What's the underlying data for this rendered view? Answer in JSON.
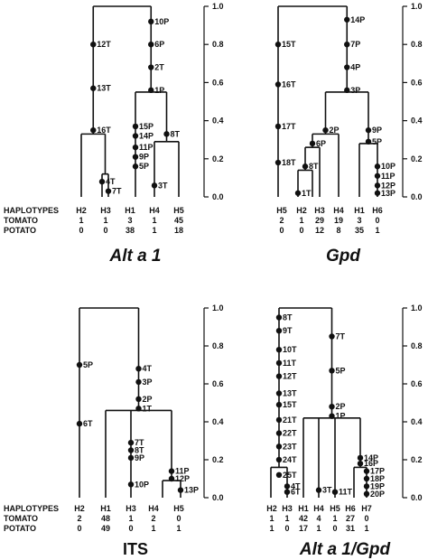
{
  "figure": {
    "panels": [
      {
        "title": "Alt a 1",
        "title_style": "italic",
        "table": {
          "labels": [
            "HAPLOTYPES",
            "TOMATO",
            "POTATO"
          ],
          "columns": [
            {
              "haplotype": "H2",
              "tomato": "1",
              "potato": "0"
            },
            {
              "haplotype": "H3",
              "tomato": "1",
              "potato": "0"
            },
            {
              "haplotype": "H1",
              "tomato": "3",
              "potato": "38"
            },
            {
              "haplotype": "H4",
              "tomato": "1",
              "potato": "1"
            },
            {
              "haplotype": "H5",
              "tomato": "45",
              "potato": "18"
            }
          ]
        },
        "axis_ticks": [
          "1.0",
          "0.8",
          "0.6",
          "0.4",
          "0.2",
          "0.0"
        ],
        "tree": {
          "nodes": [
            {
              "id": "root",
              "height": 1.0
            },
            {
              "id": "T",
              "height": 0.33
            },
            {
              "id": "Tsub",
              "height": 0.12
            },
            {
              "id": "P",
              "height": 0.55
            },
            {
              "id": "Psub",
              "height": 0.29
            }
          ],
          "links": [
            {
              "from": "root",
              "to": "T"
            },
            {
              "from": "root",
              "to": "P"
            },
            {
              "from": "T",
              "to": "H2"
            },
            {
              "from": "T",
              "to": "Tsub"
            },
            {
              "from": "Tsub",
              "to": "H3a"
            },
            {
              "from": "Tsub",
              "to": "H3b"
            },
            {
              "from": "P",
              "to": "H1"
            },
            {
              "from": "P",
              "to": "Psub"
            },
            {
              "from": "Psub",
              "to": "H4"
            },
            {
              "from": "Psub",
              "to": "H5"
            }
          ],
          "mutations": [
            {
              "label": "12T",
              "from": "root",
              "to": "T",
              "height": 0.8
            },
            {
              "label": "13T",
              "from": "root",
              "to": "T",
              "height": 0.57
            },
            {
              "label": "16T",
              "from": "root",
              "to": "T",
              "height": 0.35
            },
            {
              "label": "10P",
              "from": "root",
              "to": "P",
              "height": 0.92
            },
            {
              "label": "6P",
              "from": "root",
              "to": "P",
              "height": 0.8
            },
            {
              "label": "2T",
              "from": "root",
              "to": "P",
              "height": 0.68
            },
            {
              "label": "1P",
              "from": "root",
              "to": "P",
              "height": 0.56
            },
            {
              "label": "4T",
              "from": "Tsub",
              "to": "H3a",
              "height": 0.08
            },
            {
              "label": "7T",
              "from": "Tsub",
              "to": "H3b",
              "height": 0.03
            },
            {
              "label": "15P",
              "from": "P",
              "to": "H1",
              "height": 0.37
            },
            {
              "label": "14P",
              "from": "P",
              "to": "H1",
              "height": 0.32
            },
            {
              "label": "11P",
              "from": "P",
              "to": "H1",
              "height": 0.26
            },
            {
              "label": "9P",
              "from": "P",
              "to": "H1",
              "height": 0.21
            },
            {
              "label": "5P",
              "from": "P",
              "to": "H1",
              "height": 0.16
            },
            {
              "label": "8T",
              "from": "P",
              "to": "Psub",
              "height": 0.33
            },
            {
              "label": "3T",
              "from": "Psub",
              "to": "H4",
              "height": 0.06
            }
          ]
        }
      },
      {
        "title": "Gpd",
        "title_style": "italic",
        "table": {
          "labels": [
            "",
            "",
            ""
          ],
          "columns": [
            {
              "haplotype": "H5",
              "tomato": "2",
              "potato": "0"
            },
            {
              "haplotype": "H2",
              "tomato": "1",
              "potato": "0"
            },
            {
              "haplotype": "H3",
              "tomato": "29",
              "potato": "12"
            },
            {
              "haplotype": "H4",
              "tomato": "19",
              "potato": "8"
            },
            {
              "haplotype": "H1",
              "tomato": "3",
              "potato": "35"
            },
            {
              "haplotype": "H6",
              "tomato": "0",
              "potato": "1"
            }
          ]
        },
        "axis_ticks": [
          "1.0",
          "0.8",
          "0.6",
          "0.4",
          "0.2",
          "0.0"
        ],
        "tree": {
          "nodes": [
            {
              "id": "root",
              "height": 1.0
            },
            {
              "id": "P",
              "height": 0.55
            },
            {
              "id": "A",
              "height": 0.33
            },
            {
              "id": "B",
              "height": 0.26
            },
            {
              "id": "C",
              "height": 0.14
            },
            {
              "id": "D",
              "height": 0.28
            }
          ],
          "links": [
            {
              "from": "root",
              "to": "H5"
            },
            {
              "from": "root",
              "to": "P"
            },
            {
              "from": "P",
              "to": "A"
            },
            {
              "from": "P",
              "to": "D"
            },
            {
              "from": "A",
              "to": "B"
            },
            {
              "from": "A",
              "to": "H4"
            },
            {
              "from": "B",
              "to": "C"
            },
            {
              "from": "B",
              "to": "H3"
            },
            {
              "from": "C",
              "to": "H2"
            },
            {
              "from": "C",
              "to": "Cr"
            },
            {
              "from": "D",
              "to": "H1"
            },
            {
              "from": "D",
              "to": "H6"
            }
          ],
          "mutations": [
            {
              "label": "15T",
              "from": "root",
              "to": "H5",
              "height": 0.8
            },
            {
              "label": "16T",
              "from": "root",
              "to": "H5",
              "height": 0.59
            },
            {
              "label": "17T",
              "from": "root",
              "to": "H5",
              "height": 0.37
            },
            {
              "label": "18T",
              "from": "root",
              "to": "H5",
              "height": 0.18
            },
            {
              "label": "14P",
              "from": "root",
              "to": "P",
              "height": 0.93
            },
            {
              "label": "7P",
              "from": "root",
              "to": "P",
              "height": 0.8
            },
            {
              "label": "4P",
              "from": "root",
              "to": "P",
              "height": 0.68
            },
            {
              "label": "3P",
              "from": "root",
              "to": "P",
              "height": 0.56
            },
            {
              "label": "2P",
              "from": "P",
              "to": "A",
              "height": 0.35
            },
            {
              "label": "6P",
              "from": "A",
              "to": "B",
              "height": 0.28
            },
            {
              "label": "8T",
              "from": "B",
              "to": "C",
              "height": 0.16
            },
            {
              "label": "1T",
              "from": "C",
              "to": "H2",
              "height": 0.02
            },
            {
              "label": "9P",
              "from": "P",
              "to": "D",
              "height": 0.35
            },
            {
              "label": "5P",
              "from": "P",
              "to": "D",
              "height": 0.29
            },
            {
              "label": "10P",
              "from": "D",
              "to": "H6",
              "height": 0.16
            },
            {
              "label": "11P",
              "from": "D",
              "to": "H6",
              "height": 0.11
            },
            {
              "label": "12P",
              "from": "D",
              "to": "H6",
              "height": 0.06
            },
            {
              "label": "13P",
              "from": "D",
              "to": "H6",
              "height": 0.02
            }
          ]
        }
      },
      {
        "title": "ITS",
        "title_style": "normal",
        "table": {
          "labels": [
            "HAPLOTYPES",
            "TOMATO",
            "POTATO"
          ],
          "columns": [
            {
              "haplotype": "H2",
              "tomato": "2",
              "potato": "0"
            },
            {
              "haplotype": "H1",
              "tomato": "48",
              "potato": "49"
            },
            {
              "haplotype": "H3",
              "tomato": "1",
              "potato": "0"
            },
            {
              "haplotype": "H4",
              "tomato": "2",
              "potato": "1"
            },
            {
              "haplotype": "H5",
              "tomato": "0",
              "potato": "1"
            }
          ]
        },
        "axis_ticks": [
          "1.0",
          "0.8",
          "0.6",
          "0.4",
          "0.2",
          "0.0"
        ],
        "tree": {
          "nodes": [
            {
              "id": "root",
              "height": 1.0
            },
            {
              "id": "P",
              "height": 0.46
            },
            {
              "id": "Q",
              "height": 0.09
            }
          ],
          "links": [
            {
              "from": "root",
              "to": "H2"
            },
            {
              "from": "root",
              "to": "P"
            },
            {
              "from": "P",
              "to": "H1"
            },
            {
              "from": "P",
              "to": "H3"
            },
            {
              "from": "P",
              "to": "Q"
            },
            {
              "from": "Q",
              "to": "H4"
            },
            {
              "from": "Q",
              "to": "H5"
            }
          ],
          "mutations": [
            {
              "label": "5P",
              "from": "root",
              "to": "H2",
              "height": 0.7
            },
            {
              "label": "6T",
              "from": "root",
              "to": "H2",
              "height": 0.39
            },
            {
              "label": "4T",
              "from": "root",
              "to": "P",
              "height": 0.68
            },
            {
              "label": "3P",
              "from": "root",
              "to": "P",
              "height": 0.61
            },
            {
              "label": "2P",
              "from": "root",
              "to": "P",
              "height": 0.52
            },
            {
              "label": "1T",
              "from": "root",
              "to": "P",
              "height": 0.47
            },
            {
              "label": "7T",
              "from": "P",
              "to": "H3",
              "height": 0.29
            },
            {
              "label": "8T",
              "from": "P",
              "to": "H3",
              "height": 0.25
            },
            {
              "label": "9P",
              "from": "P",
              "to": "H3",
              "height": 0.21
            },
            {
              "label": "10P",
              "from": "P",
              "to": "H3",
              "height": 0.07
            },
            {
              "label": "11P",
              "from": "P",
              "to": "Q",
              "height": 0.14
            },
            {
              "label": "12P",
              "from": "P",
              "to": "Q",
              "height": 0.1
            },
            {
              "label": "13P",
              "from": "Q",
              "to": "H5",
              "height": 0.04
            }
          ]
        }
      },
      {
        "title": "Alt a 1/Gpd",
        "title_style": "italic",
        "table": {
          "labels": [
            "",
            "",
            ""
          ],
          "columns": [
            {
              "haplotype": "H2",
              "tomato": "1",
              "potato": "1"
            },
            {
              "haplotype": "H3",
              "tomato": "1",
              "potato": "0"
            },
            {
              "haplotype": "H1",
              "tomato": "42",
              "potato": "17"
            },
            {
              "haplotype": "H4",
              "tomato": "4",
              "potato": "1"
            },
            {
              "haplotype": "H5",
              "tomato": "1",
              "potato": "0"
            },
            {
              "haplotype": "H6",
              "tomato": "27",
              "potato": "31"
            },
            {
              "haplotype": "H7",
              "tomato": "0",
              "potato": "1"
            }
          ]
        },
        "axis_ticks": [
          "1.0",
          "0.8",
          "0.6",
          "0.4",
          "0.2",
          "0.0"
        ],
        "tree": {
          "nodes": [
            {
              "id": "root",
              "height": 1.0
            },
            {
              "id": "T",
              "height": 0.16
            },
            {
              "id": "P",
              "height": 0.42
            },
            {
              "id": "Q",
              "height": 0.16
            }
          ],
          "links": [
            {
              "from": "root",
              "to": "T"
            },
            {
              "from": "root",
              "to": "P"
            },
            {
              "from": "T",
              "to": "H2"
            },
            {
              "from": "T",
              "to": "H3"
            },
            {
              "from": "P",
              "to": "H1"
            },
            {
              "from": "P",
              "to": "H4"
            },
            {
              "from": "P",
              "to": "H5"
            },
            {
              "from": "P",
              "to": "Q"
            },
            {
              "from": "Q",
              "to": "H6"
            },
            {
              "from": "Q",
              "to": "H7"
            }
          ],
          "mutations": [
            {
              "label": "8T",
              "from": "root",
              "to": "T",
              "height": 0.95
            },
            {
              "label": "9T",
              "from": "root",
              "to": "T",
              "height": 0.88
            },
            {
              "label": "10T",
              "from": "root",
              "to": "T",
              "height": 0.78
            },
            {
              "label": "11T",
              "from": "root",
              "to": "T",
              "height": 0.71
            },
            {
              "label": "12T",
              "from": "root",
              "to": "T",
              "height": 0.64
            },
            {
              "label": "13T",
              "from": "root",
              "to": "T",
              "height": 0.55
            },
            {
              "label": "15T",
              "from": "root",
              "to": "T",
              "height": 0.49
            },
            {
              "label": "21T",
              "from": "root",
              "to": "T",
              "height": 0.41
            },
            {
              "label": "22T",
              "from": "root",
              "to": "T",
              "height": 0.34
            },
            {
              "label": "23T",
              "from": "root",
              "to": "T",
              "height": 0.27
            },
            {
              "label": "24T",
              "from": "root",
              "to": "T",
              "height": 0.2
            },
            {
              "label": "25T",
              "from": "root",
              "to": "T",
              "height": 0.12
            },
            {
              "label": "7T",
              "from": "root",
              "to": "P",
              "height": 0.85
            },
            {
              "label": "5P",
              "from": "root",
              "to": "P",
              "height": 0.67
            },
            {
              "label": "2P",
              "from": "root",
              "to": "P",
              "height": 0.48
            },
            {
              "label": "1P",
              "from": "root",
              "to": "P",
              "height": 0.43
            },
            {
              "label": "4T",
              "from": "T",
              "to": "H3",
              "height": 0.06
            },
            {
              "label": "6T",
              "from": "T",
              "to": "H3",
              "height": 0.03
            },
            {
              "label": "3T",
              "from": "P",
              "to": "H4",
              "height": 0.04
            },
            {
              "label": "11T",
              "from": "P",
              "to": "H5",
              "height": 0.03
            },
            {
              "label": "14P",
              "from": "P",
              "to": "Q",
              "height": 0.21
            },
            {
              "label": "16P",
              "from": "P",
              "to": "Q",
              "height": 0.18
            },
            {
              "label": "17P",
              "from": "Q",
              "to": "H7",
              "height": 0.14
            },
            {
              "label": "18P",
              "from": "Q",
              "to": "H7",
              "height": 0.1
            },
            {
              "label": "19P",
              "from": "Q",
              "to": "H7",
              "height": 0.06
            },
            {
              "label": "20P",
              "from": "Q",
              "to": "H7",
              "height": 0.02
            }
          ]
        }
      }
    ]
  }
}
